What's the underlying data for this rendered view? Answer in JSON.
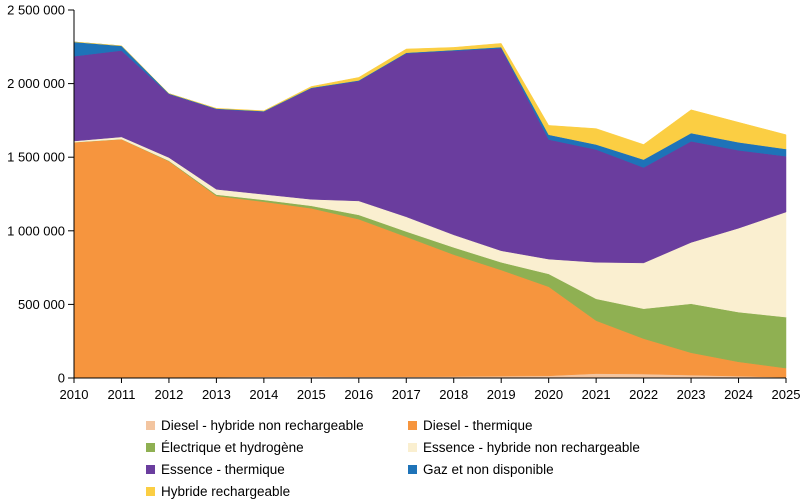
{
  "chart_data": {
    "type": "area",
    "subtype": "stacked-area",
    "title": "",
    "xlabel": "",
    "ylabel": "",
    "x": [
      2010,
      2011,
      2012,
      2013,
      2014,
      2015,
      2016,
      2017,
      2018,
      2019,
      2020,
      2021,
      2022,
      2023,
      2024,
      2025
    ],
    "x_tick_labels": [
      "2010",
      "2011",
      "2012",
      "2013",
      "2014",
      "2015",
      "2016",
      "2017",
      "2018",
      "2019",
      "2020",
      "2021",
      "2022",
      "2023",
      "2024",
      "2025"
    ],
    "ylim": [
      0,
      2500000
    ],
    "y_ticks": [
      0,
      500000,
      1000000,
      1500000,
      2000000,
      2500000
    ],
    "y_tick_labels": [
      "0",
      "500 000",
      "1 000 000",
      "1 500 000",
      "2 000 000",
      "2 500 000"
    ],
    "grid": "off",
    "legend_position": "bottom",
    "stack_order": "bottom-to-top",
    "series": [
      {
        "name": "Diesel - hybride non rechargeable",
        "color": "#F3C5A0",
        "values": [
          2000,
          3000,
          4000,
          6000,
          9000,
          10000,
          8000,
          8000,
          10000,
          13000,
          15000,
          30000,
          27000,
          20000,
          13000,
          5000
        ]
      },
      {
        "name": "Diesel - thermique",
        "color": "#F6953E",
        "values": [
          1599000,
          1619000,
          1469000,
          1231000,
          1189000,
          1143000,
          1071000,
          951000,
          828000,
          721000,
          605000,
          360000,
          241000,
          152000,
          97000,
          62000
        ]
      },
      {
        "name": "Électrique et hydrogène",
        "color": "#8FB052",
        "values": [
          1000,
          1000,
          3000,
          9000,
          12000,
          17000,
          29000,
          36000,
          49000,
          52000,
          87000,
          148000,
          203000,
          333000,
          338000,
          347000
        ]
      },
      {
        "name": "Essence - hybride non rechargeable",
        "color": "#FAEFD0",
        "values": [
          8000,
          15000,
          22000,
          36000,
          38000,
          44000,
          95000,
          100000,
          86000,
          79000,
          101000,
          248000,
          311000,
          416000,
          570000,
          714000
        ]
      },
      {
        "name": "Essence - thermique",
        "color": "#6A3D9E",
        "values": [
          576000,
          587000,
          431000,
          545000,
          562000,
          754000,
          815000,
          1110000,
          1250000,
          1375000,
          812000,
          766000,
          648000,
          687000,
          529000,
          379000
        ]
      },
      {
        "name": "Gaz et non disponible",
        "color": "#1E73B8",
        "values": [
          97000,
          32000,
          4000,
          3000,
          3000,
          4000,
          4000,
          5000,
          5000,
          8000,
          33000,
          34000,
          54000,
          56000,
          54000,
          49000
        ]
      },
      {
        "name": "Hybride rechargeable",
        "color": "#FBCE43",
        "values": [
          0,
          0,
          0,
          2000,
          3000,
          8000,
          20000,
          25000,
          18000,
          25000,
          63000,
          108000,
          102000,
          158000,
          136000,
          97000
        ]
      }
    ],
    "axis_color": "#000000"
  },
  "legend": {
    "items": [
      {
        "label": "Diesel - hybride non rechargeable",
        "color": "#F3C5A0"
      },
      {
        "label": "Diesel - thermique",
        "color": "#F6953E"
      },
      {
        "label": "Électrique et hydrogène",
        "color": "#8FB052"
      },
      {
        "label": "Essence - hybride non rechargeable",
        "color": "#FAEFD0"
      },
      {
        "label": "Essence - thermique",
        "color": "#6A3D9E"
      },
      {
        "label": "Gaz et non disponible",
        "color": "#1E73B8"
      },
      {
        "label": "Hybride rechargeable",
        "color": "#FBCE43"
      }
    ]
  }
}
